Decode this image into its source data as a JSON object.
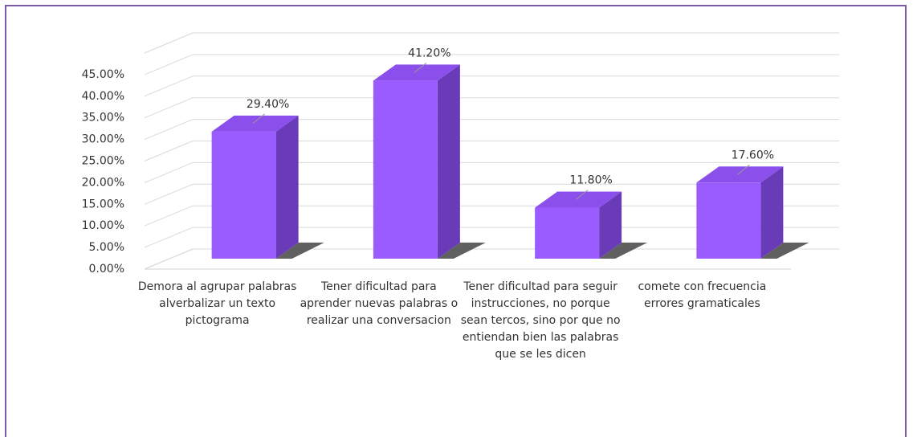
{
  "chart_data": {
    "type": "bar3d",
    "categories": [
      "Demora al agrupar palabras alverbalizar un texto pictograma",
      "Tener dificultad para aprender nuevas palabras o realizar una conversacion",
      "Tener dificultad para seguir instrucciones, no porque sean tercos, sino por que no entiendan bien las palabras que se les dicen",
      "comete con frecuencia  errores gramaticales"
    ],
    "values": [
      29.4,
      41.2,
      11.8,
      17.6
    ],
    "value_labels": [
      "29.40%",
      "41.20%",
      "11.80%",
      "17.60%"
    ],
    "color": "#9b5cff",
    "ylim": [
      0,
      50
    ],
    "yticks": [
      {
        "value": 0,
        "label": "0.00%"
      },
      {
        "value": 5,
        "label": "5.00%"
      },
      {
        "value": 10,
        "label": "10.00%"
      },
      {
        "value": 15,
        "label": "15.00%"
      },
      {
        "value": 20,
        "label": "20.00%"
      },
      {
        "value": 25,
        "label": "25.00%"
      },
      {
        "value": 30,
        "label": "30.00%"
      },
      {
        "value": 35,
        "label": "35.00%"
      },
      {
        "value": 40,
        "label": "40.00%"
      },
      {
        "value": 45,
        "label": "45.00%"
      }
    ],
    "grid": true
  }
}
